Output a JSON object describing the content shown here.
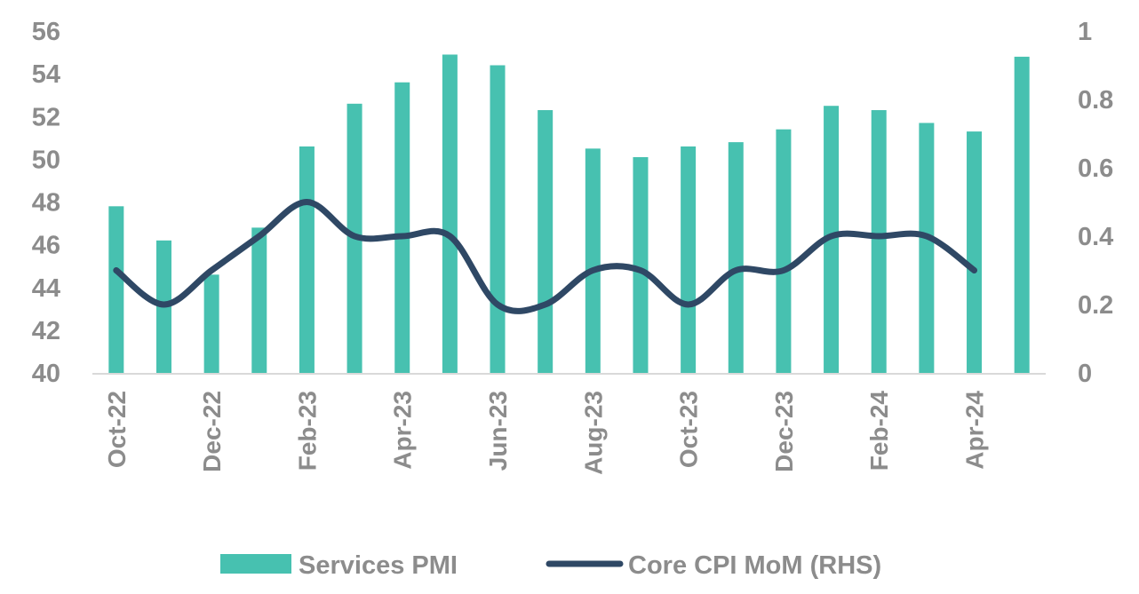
{
  "chart_data": {
    "type": "bar+line",
    "categories": [
      "Oct-22",
      "Nov-22",
      "Dec-22",
      "Jan-23",
      "Feb-23",
      "Mar-23",
      "Apr-23",
      "May-23",
      "Jun-23",
      "Jul-23",
      "Aug-23",
      "Sep-23",
      "Oct-23",
      "Nov-23",
      "Dec-23",
      "Jan-24",
      "Feb-24",
      "Mar-24",
      "Apr-24",
      "May-24"
    ],
    "x_tick_labels": [
      "Oct-22",
      "Dec-22",
      "Feb-23",
      "Apr-23",
      "Jun-23",
      "Aug-23",
      "Oct-23",
      "Dec-23",
      "Feb-24",
      "Apr-24"
    ],
    "series": [
      {
        "name": "Services PMI",
        "type": "bar",
        "axis": "left",
        "color": "#47c1b0",
        "values": [
          47.8,
          46.2,
          44.6,
          46.8,
          50.6,
          52.6,
          53.6,
          54.9,
          54.4,
          52.3,
          50.5,
          50.1,
          50.6,
          50.8,
          51.4,
          52.5,
          52.3,
          51.7,
          51.3,
          54.8
        ]
      },
      {
        "name": "Core CPI MoM (RHS)",
        "type": "line",
        "axis": "right",
        "color": "#2f4865",
        "smooth": true,
        "values": [
          0.3,
          0.2,
          0.3,
          0.4,
          0.5,
          0.4,
          0.4,
          0.4,
          0.2,
          0.2,
          0.3,
          0.3,
          0.2,
          0.3,
          0.3,
          0.4,
          0.4,
          0.4,
          0.3,
          null
        ]
      }
    ],
    "y_left": {
      "range": [
        40,
        56
      ],
      "ticks": [
        "40",
        "42",
        "44",
        "46",
        "48",
        "50",
        "52",
        "54",
        "56"
      ]
    },
    "y_right": {
      "range": [
        0,
        1
      ],
      "ticks": [
        "0",
        "0.2",
        "0.4",
        "0.6",
        "0.8",
        "1"
      ]
    },
    "grid": false,
    "legend": "bottom",
    "title": "",
    "xlabel": "",
    "ylabel": ""
  }
}
